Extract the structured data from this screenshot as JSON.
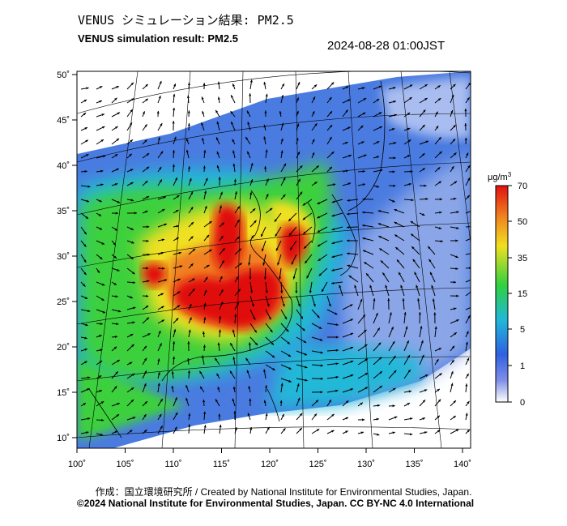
{
  "header": {
    "title_jp": "VENUS シミュレーション結果: PM2.5",
    "title_en": "VENUS simulation result: PM2.5",
    "timestamp": "2024-08-28 01:00JST"
  },
  "map": {
    "lon_ticks": [
      "100˚",
      "105˚",
      "110˚",
      "115˚",
      "120˚",
      "125˚",
      "130˚",
      "135˚",
      "140˚"
    ],
    "lat_ticks": [
      "50˚",
      "45˚",
      "40˚",
      "35˚",
      "30˚",
      "25˚",
      "20˚",
      "15˚",
      "10˚"
    ],
    "lon_values": [
      100,
      105,
      110,
      115,
      120,
      125,
      130,
      135,
      140
    ],
    "lat_values": [
      50,
      45,
      40,
      35,
      30,
      25,
      20,
      15,
      10
    ]
  },
  "colorbar": {
    "unit": "μg/m",
    "unit_sup": "3",
    "labels": [
      "70",
      "50",
      "35",
      "15",
      "5",
      "1",
      "0"
    ],
    "colors": {
      "c0": "#ffffff",
      "c1": "#3050d0",
      "c5": "#20b0d0",
      "c15": "#40d040",
      "c35": "#f0e020",
      "c50": "#f08020",
      "c70": "#e01010"
    }
  },
  "footer": {
    "credit_line": "作成：国立環境研究所 / Created by National Institute for Environmental Studies, Japan.",
    "license_line": "©2024 National Institute for Environmental Studies, Japan. CC BY-NC 4.0 International"
  }
}
